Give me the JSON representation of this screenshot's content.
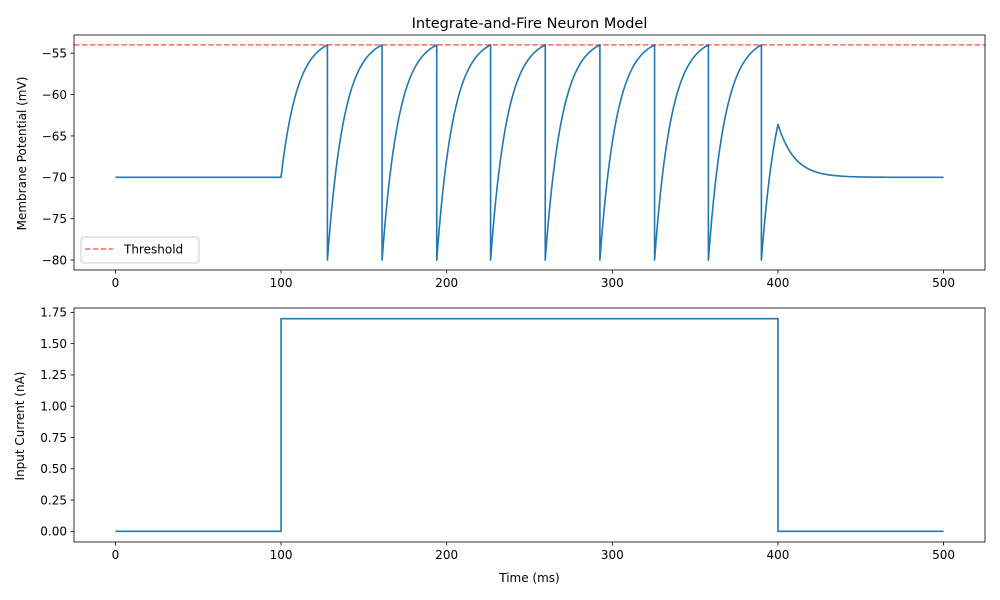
{
  "chart_data": [
    {
      "type": "line",
      "title": "Integrate-and-Fire Neuron Model",
      "xlabel": "",
      "ylabel": "Membrane Potential (mV)",
      "xlim": [
        -25,
        525
      ],
      "ylim": [
        -81.2,
        -52.8
      ],
      "xticks": [
        0,
        100,
        200,
        300,
        400,
        500
      ],
      "yticks": [
        -80,
        -75,
        -70,
        -65,
        -60,
        -55
      ],
      "grid": false,
      "legend": {
        "location": "lower-left",
        "entries": [
          "Threshold"
        ]
      },
      "series": [
        {
          "style": "solid",
          "color": "#1f77b4",
          "model": {
            "rest": -70,
            "reset": -80,
            "threshold": -54,
            "tau_ms": 10,
            "stim_start": 100,
            "stim_end": 400,
            "t_end": 500,
            "spike_times": [
              128,
              161,
              194,
              226.5,
              259.5,
              292.5,
              325.5,
              358,
              390
            ],
            "end_of_stimulus_value": -63.6
          }
        },
        {
          "name": "Threshold",
          "style": "dashed",
          "color": "#ff0000",
          "opacity": 0.6,
          "y": -54
        }
      ]
    },
    {
      "type": "line",
      "title": "",
      "xlabel": "Time (ms)",
      "ylabel": "Input Current (nA)",
      "xlim": [
        -25,
        525
      ],
      "ylim": [
        -0.085,
        1.785
      ],
      "xticks": [
        0,
        100,
        200,
        300,
        400,
        500
      ],
      "yticks": [
        0.0,
        0.25,
        0.5,
        0.75,
        1.0,
        1.25,
        1.5,
        1.75
      ],
      "grid": false,
      "series": [
        {
          "style": "solid",
          "color": "#1f77b4",
          "x": [
            0,
            100,
            100,
            400,
            400,
            500
          ],
          "y": [
            0,
            0,
            1.7,
            1.7,
            0,
            0
          ]
        }
      ]
    }
  ]
}
